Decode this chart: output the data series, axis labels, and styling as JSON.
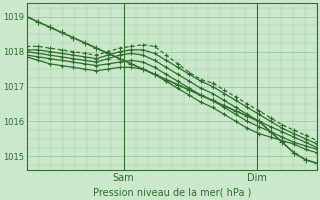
{
  "background_color": "#cce8cc",
  "grid_color": "#99cc99",
  "line_color": "#2d6e2d",
  "marker_color": "#2d6e2d",
  "title": "Pression niveau de la mer( hPa )",
  "ylabel_values": [
    1015,
    1016,
    1017,
    1018,
    1019
  ],
  "xlim": [
    0,
    48
  ],
  "ylim": [
    1014.6,
    1019.4
  ],
  "sam_x": 16,
  "dim_x": 38,
  "series": [
    [
      1019.0,
      1018.85,
      1018.7,
      1018.55,
      1018.4,
      1018.25,
      1018.1,
      1017.95,
      1017.8,
      1017.65,
      1017.5,
      1017.35,
      1017.2,
      1017.05,
      1016.9,
      1016.75,
      1016.6,
      1016.45,
      1016.3,
      1016.15,
      1016.0,
      1015.7,
      1015.4,
      1015.1,
      1014.9,
      1014.8
    ],
    [
      1018.15,
      1018.15,
      1018.1,
      1018.05,
      1018.0,
      1017.95,
      1017.9,
      1018.0,
      1018.1,
      1018.15,
      1018.2,
      1018.15,
      1017.9,
      1017.65,
      1017.4,
      1017.2,
      1017.1,
      1016.9,
      1016.7,
      1016.5,
      1016.3,
      1016.1,
      1015.9,
      1015.75,
      1015.6,
      1015.45
    ],
    [
      1018.05,
      1018.05,
      1018.0,
      1017.95,
      1017.9,
      1017.85,
      1017.8,
      1017.9,
      1018.0,
      1018.05,
      1018.05,
      1017.95,
      1017.75,
      1017.55,
      1017.35,
      1017.15,
      1017.0,
      1016.8,
      1016.6,
      1016.4,
      1016.2,
      1016.0,
      1015.8,
      1015.65,
      1015.5,
      1015.35
    ],
    [
      1018.0,
      1017.95,
      1017.9,
      1017.85,
      1017.8,
      1017.75,
      1017.7,
      1017.8,
      1017.9,
      1017.95,
      1017.9,
      1017.75,
      1017.55,
      1017.35,
      1017.15,
      1016.95,
      1016.8,
      1016.6,
      1016.4,
      1016.2,
      1016.0,
      1015.85,
      1015.7,
      1015.55,
      1015.4,
      1015.25
    ],
    [
      1017.9,
      1017.85,
      1017.8,
      1017.75,
      1017.7,
      1017.65,
      1017.6,
      1017.65,
      1017.7,
      1017.75,
      1017.7,
      1017.55,
      1017.35,
      1017.15,
      1016.95,
      1016.75,
      1016.6,
      1016.4,
      1016.2,
      1016.0,
      1015.85,
      1015.7,
      1015.55,
      1015.4,
      1015.3,
      1015.2
    ],
    [
      1017.85,
      1017.75,
      1017.65,
      1017.6,
      1017.55,
      1017.5,
      1017.45,
      1017.5,
      1017.55,
      1017.55,
      1017.5,
      1017.35,
      1017.15,
      1016.95,
      1016.75,
      1016.55,
      1016.4,
      1016.2,
      1016.0,
      1015.8,
      1015.65,
      1015.55,
      1015.45,
      1015.35,
      1015.2,
      1015.1
    ]
  ],
  "series_styles": [
    {
      "lw": 1.2,
      "ls": "-",
      "marker": "+",
      "ms": 4,
      "dashes": []
    },
    {
      "lw": 0.9,
      "ls": "--",
      "marker": "+",
      "ms": 3.5,
      "dashes": [
        3,
        2
      ]
    },
    {
      "lw": 0.9,
      "ls": "-",
      "marker": "+",
      "ms": 3.5,
      "dashes": []
    },
    {
      "lw": 0.9,
      "ls": "-",
      "marker": "+",
      "ms": 3.5,
      "dashes": []
    },
    {
      "lw": 0.9,
      "ls": "-",
      "marker": "+",
      "ms": 3.5,
      "dashes": []
    },
    {
      "lw": 0.9,
      "ls": "-",
      "marker": "+",
      "ms": 3.5,
      "dashes": []
    }
  ]
}
